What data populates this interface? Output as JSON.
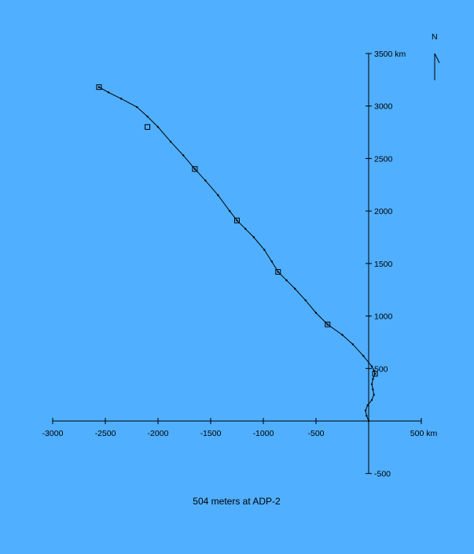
{
  "chart_data": {
    "type": "line",
    "title": "",
    "caption": "504 meters at ADP-2",
    "north_label": "N",
    "x_axis": {
      "range": [
        -3000,
        500
      ],
      "ticks": [
        -3000,
        -2500,
        -2000,
        -1500,
        -1000,
        -500,
        500
      ],
      "tick_labels": [
        "-3000",
        "-2500",
        "-2000",
        "-1500",
        "-1000",
        "-500",
        "500 km"
      ]
    },
    "y_axis": {
      "range": [
        -500,
        3500
      ],
      "ticks": [
        -500,
        500,
        1000,
        1500,
        2000,
        2500,
        3000,
        3500
      ],
      "tick_labels": [
        "-500",
        "500",
        "1000",
        "1500",
        "2000",
        "2500",
        "3000",
        "3500 km"
      ]
    },
    "series": [
      {
        "x": [
          0,
          -20,
          -30,
          -10,
          30,
          50,
          40,
          30,
          40,
          60,
          50,
          30,
          -50,
          -150,
          -250,
          -390,
          -500,
          -600,
          -700,
          -780,
          -860,
          -920,
          -990,
          -1090,
          -1170,
          -1250,
          -1320,
          -1430,
          -1550,
          -1650,
          -1760,
          -1880,
          -2000,
          -2100,
          -2200,
          -2350,
          -2470,
          -2560
        ],
        "y": [
          0,
          50,
          100,
          150,
          200,
          250,
          300,
          350,
          400,
          450,
          480,
          520,
          620,
          730,
          820,
          920,
          1030,
          1150,
          1260,
          1340,
          1420,
          1520,
          1630,
          1750,
          1830,
          1910,
          2000,
          2150,
          2290,
          2400,
          2530,
          2660,
          2800,
          2900,
          2990,
          3070,
          3130,
          3180
        ]
      }
    ],
    "markers": {
      "x": [
        60,
        -390,
        -860,
        -1250,
        -1650,
        -2100,
        -2560
      ],
      "y": [
        450,
        920,
        1420,
        1910,
        2400,
        2800,
        3180
      ]
    }
  }
}
